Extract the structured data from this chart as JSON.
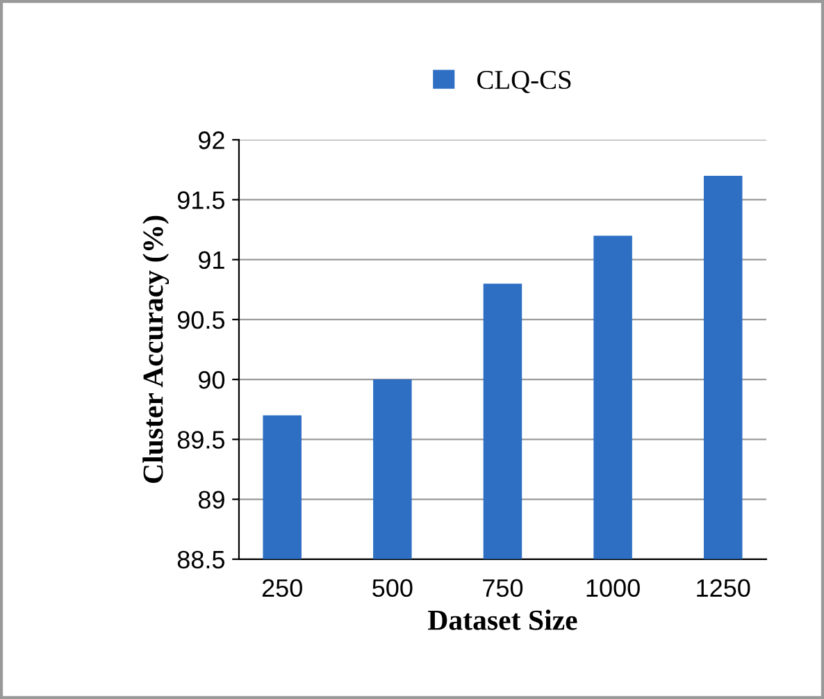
{
  "chart_data": {
    "type": "bar",
    "xlabel": "Dataset Size",
    "ylabel": "Cluster Accuracy (%)",
    "categories": [
      "250",
      "500",
      "750",
      "1000",
      "1250"
    ],
    "series": [
      {
        "name": "CLQ-CS",
        "color": "#2e6fc4",
        "values": [
          89.7,
          90.0,
          90.8,
          91.2,
          91.7
        ]
      }
    ],
    "ylim": [
      88.5,
      92
    ],
    "yticks": [
      88.5,
      89,
      89.5,
      90,
      90.5,
      91,
      91.5,
      92
    ],
    "grid": "y",
    "legend": "top"
  }
}
